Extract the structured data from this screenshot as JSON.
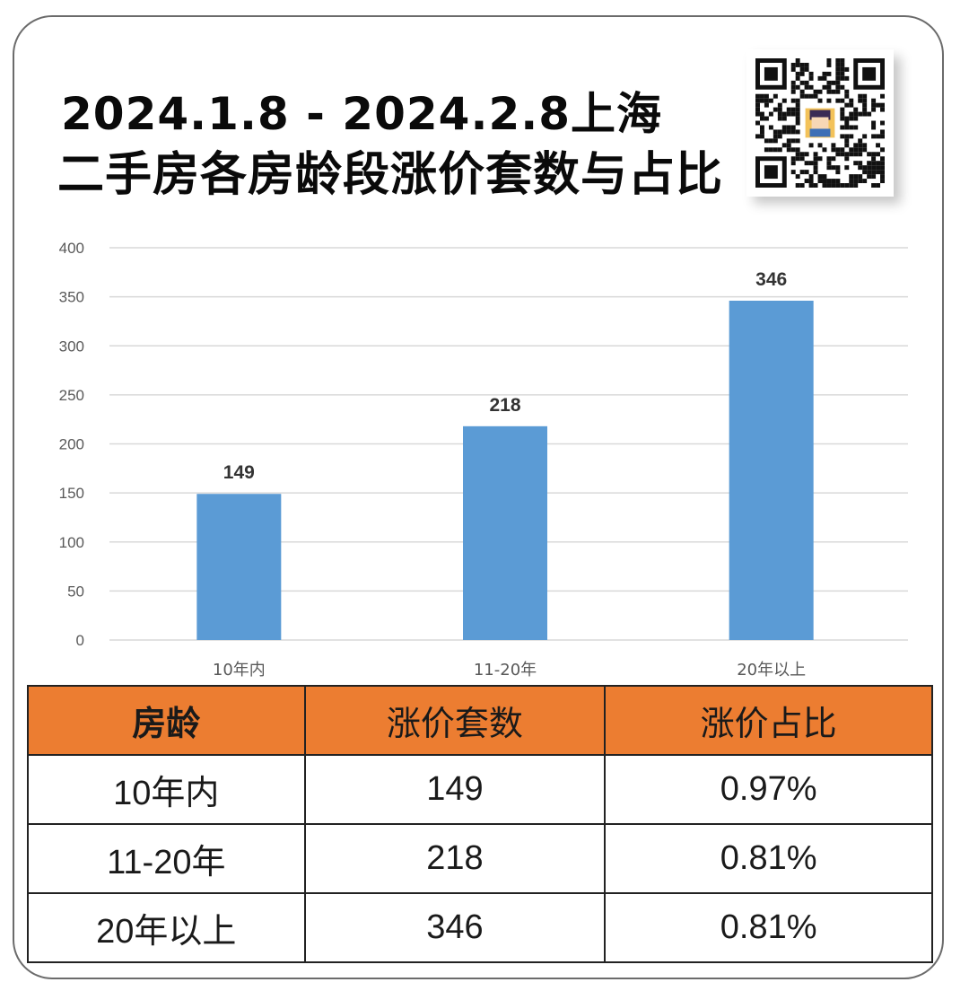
{
  "title": {
    "line1": "2024.1.8 - 2024.2.8上海",
    "line2": "二手房各房龄段涨价套数与占比"
  },
  "qr_icon": "qr-code-with-avatar",
  "colors": {
    "bar": "#5b9bd5",
    "table_header": "#ec7d31",
    "grid": "#d9d9d9"
  },
  "chart_data": {
    "type": "bar",
    "categories": [
      "10年内",
      "11-20年",
      "20年以上"
    ],
    "values": [
      149,
      218,
      346
    ],
    "data_labels": [
      "149",
      "218",
      "346"
    ],
    "ylim": [
      0,
      400
    ],
    "yticks": [
      0,
      50,
      100,
      150,
      200,
      250,
      300,
      350,
      400
    ],
    "grid": true,
    "title": "",
    "xlabel": "",
    "ylabel": ""
  },
  "table": {
    "headers": [
      "房龄",
      "涨价套数",
      "涨价占比"
    ],
    "rows": [
      [
        "10年内",
        "149",
        "0.97%"
      ],
      [
        "11-20年",
        "218",
        "0.81%"
      ],
      [
        "20年以上",
        "346",
        "0.81%"
      ]
    ]
  }
}
